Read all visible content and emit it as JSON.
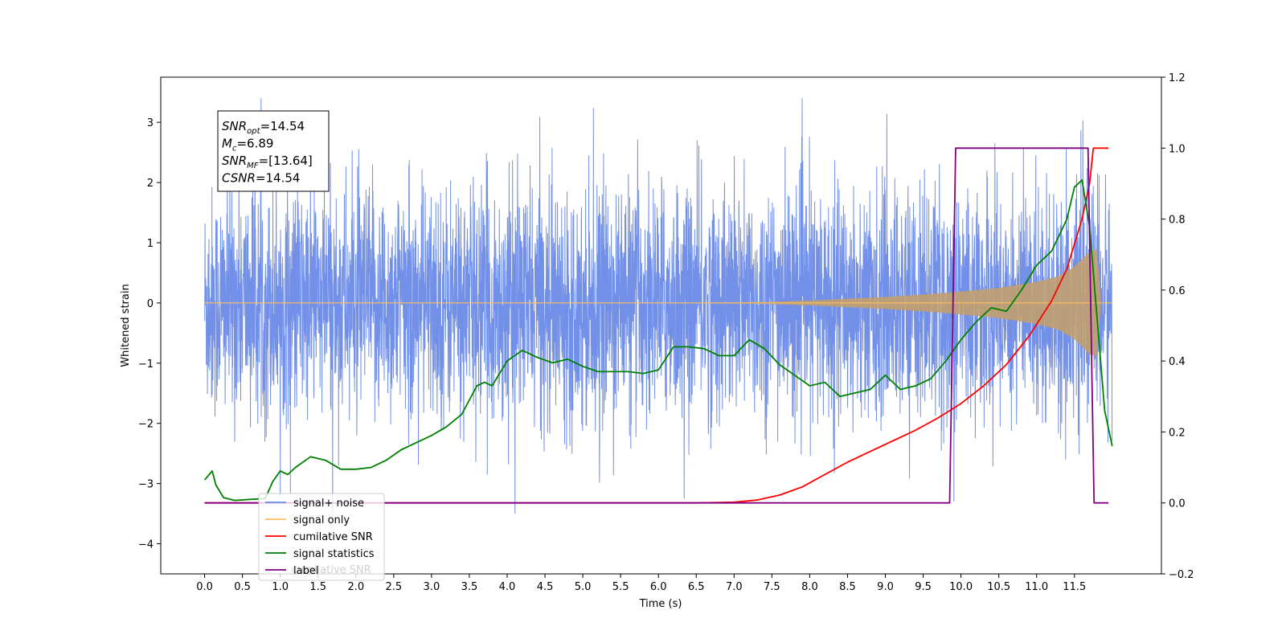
{
  "chart_data": {
    "type": "line",
    "xlabel": "Time (s)",
    "ylabel": "Whitened strain",
    "xlim": [
      -0.58,
      12.65
    ],
    "ylim": [
      -4.5,
      3.75
    ],
    "y2lim": [
      -0.2,
      1.2
    ],
    "x_ticks": [
      0.0,
      0.5,
      1.0,
      1.5,
      2.0,
      2.5,
      3.0,
      3.5,
      4.0,
      4.5,
      5.0,
      5.5,
      6.0,
      6.5,
      7.0,
      7.5,
      8.0,
      8.5,
      9.0,
      9.5,
      10.0,
      10.5,
      11.0,
      11.5
    ],
    "x_tick_labels": [
      "0.0",
      "0.5",
      "1.0",
      "1.5",
      "2.0",
      "2.5",
      "3.0",
      "3.5",
      "4.0",
      "4.5",
      "5.0",
      "5.5",
      "6.0",
      "6.5",
      "7.0",
      "7.5",
      "8.0",
      "8.5",
      "9.0",
      "9.5",
      "10.0",
      "10.5",
      "11.0",
      "11.5"
    ],
    "y_ticks": [
      -4,
      -3,
      -2,
      -1,
      0,
      1,
      2,
      3
    ],
    "y_tick_labels": [
      "−4",
      "−3",
      "−2",
      "−1",
      "0",
      "1",
      "2",
      "3"
    ],
    "y2_ticks": [
      -0.2,
      0.0,
      0.2,
      0.4,
      0.6,
      0.8,
      1.0,
      1.2
    ],
    "y2_tick_labels": [
      "−0.2",
      "0.0",
      "0.2",
      "0.4",
      "0.6",
      "0.8",
      "1.0",
      "1.2"
    ],
    "annotation": {
      "lines": [
        {
          "sym": "SNR",
          "sub": "opt",
          "text": "=14.54"
        },
        {
          "sym": "M",
          "sub": "c",
          "text": "=6.89"
        },
        {
          "sym": "SNR",
          "sub": "MF",
          "text": "=[13.64]"
        },
        {
          "sym": "CSNR",
          "sub": "",
          "text": "=14.54"
        }
      ]
    },
    "legend": {
      "placement": "lower-left",
      "entries": [
        {
          "label": "signal+ noise",
          "color": "#6a8ae6"
        },
        {
          "label": "signal only",
          "color": "#ffbf5e"
        },
        {
          "label": "cumilative SNR",
          "color": "#ff0000"
        },
        {
          "label": "signal statistics",
          "color": "#008000"
        },
        {
          "label": "label",
          "color": "#800080"
        }
      ],
      "ghost_text": "cumilative SNR"
    },
    "series": [
      {
        "name": "signal+ noise",
        "axis": "left",
        "color": "#6a8ae6",
        "description_values": {
          "x_start": 0.0,
          "x_end": 12.0,
          "envelope_typical": 2.0,
          "peak_min": -3.5,
          "peak_max": 3.4
        }
      },
      {
        "name": "signal only",
        "axis": "left",
        "color": "#ffbf5e",
        "envelope": {
          "x": [
            0.0,
            6.0,
            7.0,
            7.5,
            8.0,
            8.5,
            9.0,
            9.5,
            10.0,
            10.5,
            11.0,
            11.3,
            11.5,
            11.7,
            11.8,
            11.85,
            12.0
          ],
          "amp": [
            0.0,
            0.0,
            0.01,
            0.02,
            0.04,
            0.07,
            0.1,
            0.14,
            0.19,
            0.25,
            0.35,
            0.45,
            0.6,
            0.85,
            0.9,
            0.0,
            0.0
          ]
        }
      },
      {
        "name": "cumilative SNR",
        "axis": "right",
        "color": "#ff0000",
        "x": [
          0.0,
          6.5,
          7.0,
          7.3,
          7.6,
          7.9,
          8.2,
          8.5,
          8.8,
          9.1,
          9.4,
          9.7,
          10.0,
          10.3,
          10.6,
          10.9,
          11.2,
          11.4,
          11.6,
          11.7,
          11.75,
          11.8,
          11.95
        ],
        "values": [
          0.0,
          0.0,
          0.002,
          0.008,
          0.022,
          0.045,
          0.08,
          0.115,
          0.145,
          0.175,
          0.205,
          0.24,
          0.28,
          0.33,
          0.39,
          0.47,
          0.57,
          0.66,
          0.8,
          0.9,
          1.0,
          1.0,
          1.0
        ]
      },
      {
        "name": "signal statistics",
        "axis": "right",
        "color": "#008000",
        "x": [
          0.0,
          0.1,
          0.15,
          0.25,
          0.4,
          0.6,
          0.8,
          0.9,
          1.0,
          1.1,
          1.2,
          1.4,
          1.6,
          1.8,
          2.0,
          2.2,
          2.4,
          2.6,
          2.8,
          3.0,
          3.2,
          3.4,
          3.6,
          3.7,
          3.8,
          4.0,
          4.2,
          4.4,
          4.6,
          4.8,
          5.0,
          5.2,
          5.4,
          5.6,
          5.8,
          6.0,
          6.2,
          6.4,
          6.6,
          6.8,
          7.0,
          7.2,
          7.4,
          7.6,
          7.8,
          8.0,
          8.2,
          8.4,
          8.6,
          8.8,
          9.0,
          9.2,
          9.4,
          9.6,
          9.8,
          10.0,
          10.2,
          10.4,
          10.6,
          10.8,
          11.0,
          11.2,
          11.4,
          11.5,
          11.6,
          11.7,
          11.8,
          11.9,
          12.0
        ],
        "values": [
          0.065,
          0.09,
          0.05,
          0.015,
          0.007,
          0.01,
          0.012,
          0.06,
          0.09,
          0.08,
          0.1,
          0.13,
          0.12,
          0.095,
          0.095,
          0.1,
          0.12,
          0.15,
          0.17,
          0.19,
          0.215,
          0.25,
          0.33,
          0.34,
          0.33,
          0.4,
          0.43,
          0.41,
          0.395,
          0.405,
          0.385,
          0.37,
          0.37,
          0.37,
          0.365,
          0.375,
          0.44,
          0.44,
          0.435,
          0.415,
          0.415,
          0.46,
          0.435,
          0.39,
          0.36,
          0.33,
          0.34,
          0.3,
          0.31,
          0.32,
          0.36,
          0.32,
          0.33,
          0.35,
          0.4,
          0.46,
          0.51,
          0.55,
          0.54,
          0.6,
          0.67,
          0.71,
          0.8,
          0.89,
          0.91,
          0.78,
          0.52,
          0.26,
          0.16
        ]
      },
      {
        "name": "label",
        "axis": "right",
        "color": "#800080",
        "x": [
          0.0,
          9.85,
          9.93,
          11.68,
          11.76,
          11.95
        ],
        "values": [
          0.0,
          0.0,
          1.0,
          1.0,
          0.0,
          0.0
        ]
      }
    ]
  }
}
